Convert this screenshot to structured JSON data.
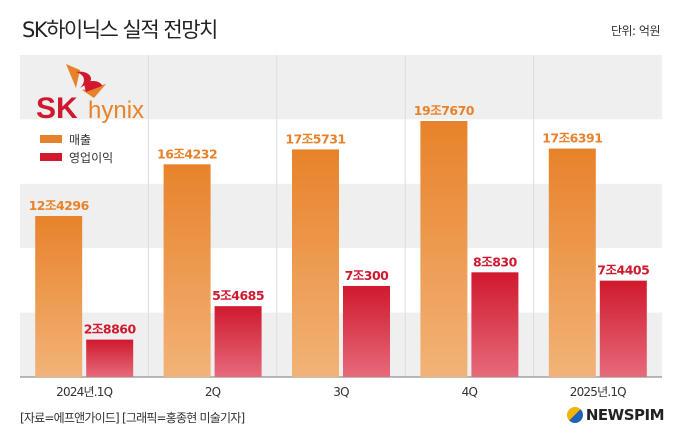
{
  "title": "SK하이닉스 실적 전망치",
  "unit": "단위: 억원",
  "source": "[자료=에프앤가이드] [그래픽=홍종현 미술기자]",
  "brand": "NEWSPIM",
  "logo_text": "SK hynix",
  "colors": {
    "revenue": "#e8822a",
    "profit": "#d0192e"
  },
  "chart_data": {
    "type": "bar",
    "title": "SK하이닉스 실적 전망치",
    "ylabel": "억원",
    "categories": [
      "2024년.1Q",
      "2Q",
      "3Q",
      "4Q",
      "2025년.1Q"
    ],
    "series": [
      {
        "name": "매출",
        "values": [
          124296,
          164232,
          175731,
          197670,
          176391
        ],
        "labels": [
          "12조4296",
          "16조4232",
          "17조5731",
          "19조7670",
          "17조6391"
        ]
      },
      {
        "name": "영업이익",
        "values": [
          28860,
          54685,
          70300,
          80830,
          74405
        ],
        "labels": [
          "2조8860",
          "5조4685",
          "7조300",
          "8조830",
          "7조4405"
        ]
      }
    ],
    "ylim": [
      0,
      197670
    ]
  }
}
